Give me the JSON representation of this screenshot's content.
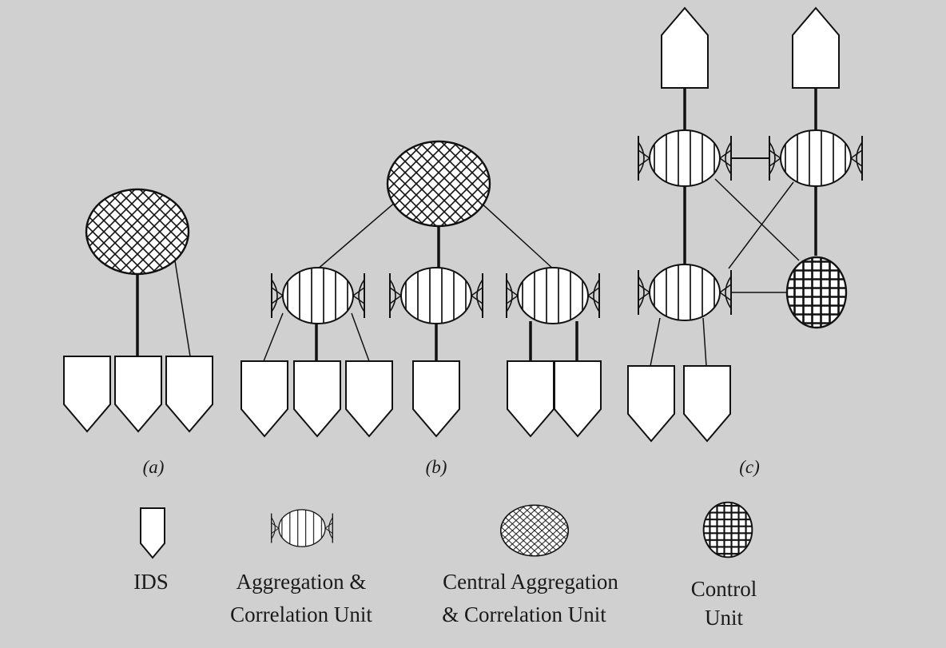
{
  "panels": {
    "a": "(a)",
    "b": "(b)",
    "c": "(c)"
  },
  "legend": {
    "ids": "IDS",
    "acu_line1": "Aggregation &",
    "acu_line2": "Correlation Unit",
    "central_line1": "Central Aggregation",
    "central_line2": "& Correlation Unit",
    "control_line1": "Control",
    "control_line2": "Unit"
  },
  "colors": {
    "background": "#d0d0d0",
    "stroke": "#111111",
    "fill": "#ffffff"
  }
}
